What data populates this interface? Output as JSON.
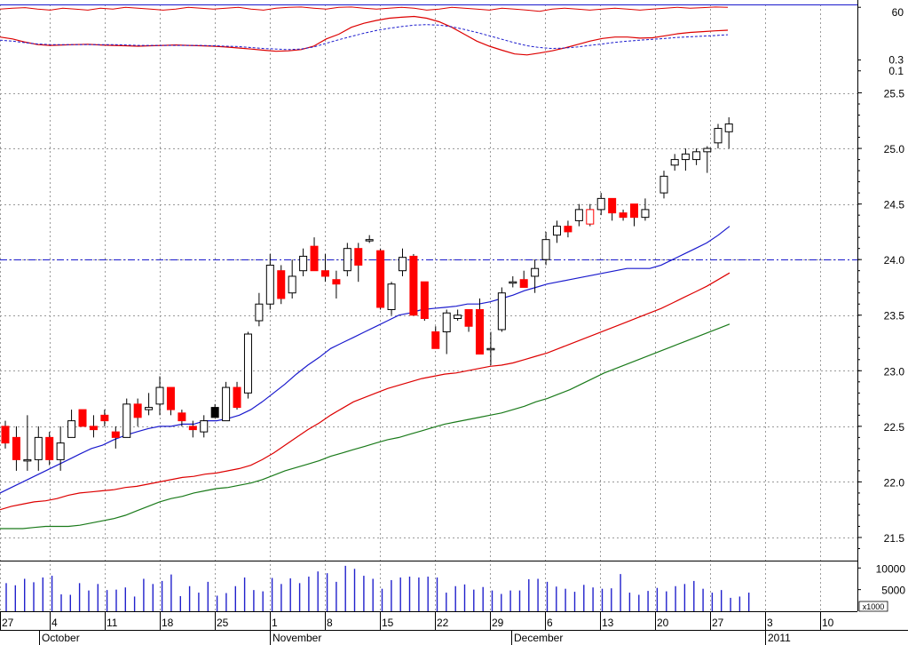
{
  "chart_data": {
    "type": "candlestick",
    "colors": {
      "grid": "#9a9a9a",
      "axis": "#000000",
      "up_fill": "#ffffff",
      "down_fill": "#ff0000",
      "wick": "#000000",
      "ma_short": "#1a1acd",
      "ma_mid": "#dd0000",
      "ma_long": "#1a7a1a",
      "osc_line": "#dd0000",
      "osc_dash": "#1a1acd",
      "volume": "#2020cc",
      "hline": "#1a1acd"
    },
    "oscillator": {
      "tick_labels": [
        "60",
        "0.3",
        "0.1"
      ],
      "tick_values": [
        60,
        0.3,
        0.1
      ],
      "scale": "log",
      "line_values": [
        3.0,
        2.5,
        1.8,
        1.4,
        1.3,
        1.35,
        1.4,
        1.45,
        1.35,
        1.3,
        1.25,
        1.2,
        1.25,
        1.3,
        1.35,
        1.3,
        1.25,
        1.2,
        1.1,
        1.0,
        0.9,
        0.8,
        0.72,
        0.75,
        0.85,
        1.2,
        2.5,
        4.0,
        8.0,
        12.0,
        16.0,
        20.0,
        22.0,
        24.0,
        20.0,
        14.0,
        8.0,
        4.0,
        2.0,
        1.2,
        0.8,
        0.55,
        0.5,
        0.6,
        0.75,
        1.0,
        1.4,
        2.0,
        2.6,
        3.0,
        3.0,
        2.7,
        2.8,
        3.4,
        4.2,
        4.8,
        5.2,
        5.6,
        6.0
      ],
      "dash_values": [
        2.2,
        2.0,
        1.7,
        1.5,
        1.4,
        1.4,
        1.4,
        1.4,
        1.4,
        1.4,
        1.35,
        1.3,
        1.3,
        1.3,
        1.3,
        1.3,
        1.3,
        1.25,
        1.2,
        1.15,
        1.05,
        0.95,
        0.9,
        0.85,
        0.9,
        1.1,
        1.6,
        2.3,
        3.2,
        4.4,
        5.8,
        7.2,
        8.6,
        10.0,
        10.5,
        10.0,
        8.5,
        6.5,
        4.8,
        3.4,
        2.4,
        1.7,
        1.25,
        1.05,
        0.95,
        1.0,
        1.1,
        1.3,
        1.5,
        1.75,
        2.0,
        2.2,
        2.4,
        2.6,
        2.9,
        3.1,
        3.3,
        3.5,
        3.8
      ],
      "top_line_values": [
        50,
        55,
        58,
        50,
        45,
        55,
        50,
        45,
        55,
        50,
        60,
        55,
        50,
        45,
        50,
        60,
        55,
        50,
        55,
        60,
        50,
        45,
        55,
        60,
        62,
        55,
        50,
        60,
        62,
        55,
        50,
        55,
        60,
        55,
        45,
        50,
        60,
        55,
        50,
        45,
        55,
        50,
        45,
        40,
        50,
        55,
        50,
        45,
        50,
        55,
        50,
        45,
        50,
        55,
        60,
        55,
        58,
        62,
        60
      ]
    },
    "price": {
      "y_tick_labels": [
        "25.5",
        "25.0",
        "24.5",
        "24.0",
        "23.5",
        "23.0",
        "22.5",
        "22.0",
        "21.5"
      ],
      "y_tick_values": [
        25.5,
        25.0,
        24.5,
        24.0,
        23.5,
        23.0,
        22.5,
        22.0,
        21.5
      ],
      "ylim": [
        21.3,
        25.6
      ],
      "reference_line": 24.0,
      "candles": [
        {
          "o": 22.5,
          "h": 22.55,
          "l": 22.3,
          "c": 22.35
        },
        {
          "o": 22.4,
          "h": 22.5,
          "l": 22.1,
          "c": 22.2
        },
        {
          "o": 22.2,
          "h": 22.6,
          "l": 22.1,
          "c": 22.2
        },
        {
          "o": 22.2,
          "h": 22.5,
          "l": 22.1,
          "c": 22.4
        },
        {
          "o": 22.4,
          "h": 22.45,
          "l": 22.15,
          "c": 22.2
        },
        {
          "o": 22.2,
          "h": 22.5,
          "l": 22.1,
          "c": 22.35
        },
        {
          "o": 22.4,
          "h": 22.65,
          "l": 22.4,
          "c": 22.55
        },
        {
          "o": 22.65,
          "h": 22.65,
          "l": 22.5,
          "c": 22.5
        },
        {
          "o": 22.5,
          "h": 22.6,
          "l": 22.4,
          "c": 22.47
        },
        {
          "o": 22.6,
          "h": 22.65,
          "l": 22.5,
          "c": 22.55
        },
        {
          "o": 22.45,
          "h": 22.5,
          "l": 22.3,
          "c": 22.4
        },
        {
          "o": 22.4,
          "h": 22.75,
          "l": 22.4,
          "c": 22.7
        },
        {
          "o": 22.7,
          "h": 22.75,
          "l": 22.5,
          "c": 22.58
        },
        {
          "o": 22.65,
          "h": 22.8,
          "l": 22.6,
          "c": 22.67
        },
        {
          "o": 22.7,
          "h": 22.95,
          "l": 22.6,
          "c": 22.85
        },
        {
          "o": 22.85,
          "h": 22.85,
          "l": 22.6,
          "c": 22.65
        },
        {
          "o": 22.62,
          "h": 22.65,
          "l": 22.5,
          "c": 22.55
        },
        {
          "o": 22.5,
          "h": 22.55,
          "l": 22.4,
          "c": 22.47
        },
        {
          "o": 22.45,
          "h": 22.6,
          "l": 22.4,
          "c": 22.55
        },
        {
          "o": 22.58,
          "h": 22.7,
          "l": 22.58,
          "c": 22.67,
          "fill": "#000000"
        },
        {
          "o": 22.55,
          "h": 22.9,
          "l": 22.55,
          "c": 22.85
        },
        {
          "o": 22.85,
          "h": 22.9,
          "l": 22.65,
          "c": 22.67
        },
        {
          "o": 22.8,
          "h": 23.35,
          "l": 22.75,
          "c": 23.33
        },
        {
          "o": 23.45,
          "h": 23.7,
          "l": 23.4,
          "c": 23.6
        },
        {
          "o": 23.6,
          "h": 24.05,
          "l": 23.55,
          "c": 23.95
        },
        {
          "o": 23.9,
          "h": 23.95,
          "l": 23.6,
          "c": 23.65
        },
        {
          "o": 23.7,
          "h": 24.0,
          "l": 23.65,
          "c": 23.85
        },
        {
          "o": 23.9,
          "h": 24.1,
          "l": 23.85,
          "c": 24.03
        },
        {
          "o": 24.12,
          "h": 24.2,
          "l": 23.9,
          "c": 23.9
        },
        {
          "o": 23.9,
          "h": 24.05,
          "l": 23.8,
          "c": 23.85
        },
        {
          "o": 23.82,
          "h": 23.9,
          "l": 23.65,
          "c": 23.78
        },
        {
          "o": 23.9,
          "h": 24.15,
          "l": 23.85,
          "c": 24.1
        },
        {
          "o": 24.1,
          "h": 24.15,
          "l": 23.8,
          "c": 23.95
        },
        {
          "o": 24.18,
          "h": 24.22,
          "l": 24.15,
          "c": 24.18
        },
        {
          "o": 24.08,
          "h": 24.1,
          "l": 23.55,
          "c": 23.57
        },
        {
          "o": 23.55,
          "h": 23.8,
          "l": 23.5,
          "c": 23.78
        },
        {
          "o": 23.9,
          "h": 24.1,
          "l": 23.85,
          "c": 24.02
        },
        {
          "o": 24.03,
          "h": 24.05,
          "l": 23.5,
          "c": 23.5
        },
        {
          "o": 23.8,
          "h": 23.8,
          "l": 23.45,
          "c": 23.47
        },
        {
          "o": 23.35,
          "h": 23.4,
          "l": 23.2,
          "c": 23.2
        },
        {
          "o": 23.35,
          "h": 23.55,
          "l": 23.15,
          "c": 23.52
        },
        {
          "o": 23.47,
          "h": 23.55,
          "l": 23.45,
          "c": 23.5
        },
        {
          "o": 23.55,
          "h": 23.55,
          "l": 23.35,
          "c": 23.4
        },
        {
          "o": 23.55,
          "h": 23.65,
          "l": 23.15,
          "c": 23.15
        },
        {
          "o": 23.2,
          "h": 23.35,
          "l": 23.05,
          "c": 23.2
        },
        {
          "o": 23.37,
          "h": 23.75,
          "l": 23.35,
          "c": 23.7
        },
        {
          "o": 23.8,
          "h": 23.85,
          "l": 23.75,
          "c": 23.8
        },
        {
          "o": 23.82,
          "h": 23.9,
          "l": 23.75,
          "c": 23.75
        },
        {
          "o": 23.85,
          "h": 24.0,
          "l": 23.7,
          "c": 23.92
        },
        {
          "o": 24.0,
          "h": 24.25,
          "l": 23.95,
          "c": 24.18
        },
        {
          "o": 24.22,
          "h": 24.35,
          "l": 24.15,
          "c": 24.3
        },
        {
          "o": 24.3,
          "h": 24.35,
          "l": 24.2,
          "c": 24.25
        },
        {
          "o": 24.35,
          "h": 24.5,
          "l": 24.3,
          "c": 24.45
        },
        {
          "o": 24.32,
          "h": 24.5,
          "l": 24.3,
          "c": 24.45,
          "fill": "#ffffff",
          "stroke": "#ff0000"
        },
        {
          "o": 24.45,
          "h": 24.6,
          "l": 24.4,
          "c": 24.55
        },
        {
          "o": 24.55,
          "h": 24.55,
          "l": 24.35,
          "c": 24.42
        },
        {
          "o": 24.42,
          "h": 24.45,
          "l": 24.35,
          "c": 24.38
        },
        {
          "o": 24.5,
          "h": 24.5,
          "l": 24.3,
          "c": 24.38
        },
        {
          "o": 24.38,
          "h": 24.55,
          "l": 24.35,
          "c": 24.45
        }
      ],
      "late_candles": [
        {
          "o": 24.6,
          "h": 24.8,
          "l": 24.55,
          "c": 24.75
        },
        {
          "o": 24.85,
          "h": 24.95,
          "l": 24.8,
          "c": 24.9
        },
        {
          "o": 24.9,
          "h": 25.0,
          "l": 24.8,
          "c": 24.95
        },
        {
          "o": 24.9,
          "h": 25.0,
          "l": 24.85,
          "c": 24.97
        },
        {
          "o": 24.97,
          "h": 25.02,
          "l": 24.78,
          "c": 25.0
        },
        {
          "o": 25.05,
          "h": 25.22,
          "l": 25.0,
          "c": 25.18
        },
        {
          "o": 25.15,
          "h": 25.28,
          "l": 25.0,
          "c": 25.22
        }
      ],
      "ma_short": [
        21.9,
        21.95,
        22.0,
        22.05,
        22.1,
        22.15,
        22.2,
        22.25,
        22.3,
        22.33,
        22.38,
        22.42,
        22.45,
        22.48,
        22.5,
        22.5,
        22.52,
        22.52,
        22.55,
        22.55,
        22.57,
        22.6,
        22.65,
        22.72,
        22.8,
        22.88,
        22.97,
        23.05,
        23.12,
        23.2,
        23.25,
        23.3,
        23.35,
        23.4,
        23.45,
        23.5,
        23.52,
        23.55,
        23.56,
        23.57,
        23.58,
        23.6,
        23.6,
        23.62,
        23.65,
        23.68,
        23.72,
        23.75,
        23.78,
        23.8,
        23.82,
        23.84,
        23.86,
        23.88,
        23.9,
        23.92,
        23.92,
        23.92,
        23.95,
        24.0,
        24.05,
        24.1,
        24.15,
        24.22,
        24.3
      ],
      "ma_mid": [
        21.75,
        21.78,
        21.8,
        21.82,
        21.83,
        21.85,
        21.88,
        21.9,
        21.91,
        21.92,
        21.93,
        21.95,
        21.96,
        21.98,
        22.0,
        22.02,
        22.04,
        22.05,
        22.07,
        22.08,
        22.1,
        22.12,
        22.15,
        22.2,
        22.26,
        22.33,
        22.4,
        22.47,
        22.53,
        22.6,
        22.66,
        22.72,
        22.76,
        22.8,
        22.84,
        22.87,
        22.9,
        22.93,
        22.95,
        22.97,
        22.98,
        23.0,
        23.02,
        23.04,
        23.05,
        23.07,
        23.1,
        23.13,
        23.16,
        23.2,
        23.24,
        23.28,
        23.32,
        23.36,
        23.4,
        23.44,
        23.48,
        23.52,
        23.56,
        23.61,
        23.66,
        23.71,
        23.76,
        23.82,
        23.88
      ],
      "ma_long": [
        21.58,
        21.58,
        21.58,
        21.59,
        21.6,
        21.6,
        21.6,
        21.61,
        21.63,
        21.65,
        21.67,
        21.7,
        21.74,
        21.78,
        21.82,
        21.85,
        21.87,
        21.9,
        21.92,
        21.94,
        21.95,
        21.97,
        21.99,
        22.02,
        22.06,
        22.1,
        22.13,
        22.16,
        22.19,
        22.23,
        22.26,
        22.29,
        22.32,
        22.35,
        22.38,
        22.4,
        22.43,
        22.46,
        22.49,
        22.52,
        22.54,
        22.56,
        22.58,
        22.6,
        22.62,
        22.65,
        22.68,
        22.72,
        22.75,
        22.79,
        22.83,
        22.88,
        22.93,
        22.98,
        23.02,
        23.06,
        23.1,
        23.14,
        23.18,
        23.22,
        23.26,
        23.3,
        23.34,
        23.38,
        23.42
      ]
    },
    "volume": {
      "tick_labels": [
        "10000",
        "5000"
      ],
      "tick_values": [
        10000,
        5000
      ],
      "unit_label": "x1000",
      "values": [
        6500,
        6000,
        7500,
        6700,
        7800,
        8200,
        3900,
        3800,
        6500,
        4800,
        6300,
        4900,
        5000,
        5500,
        3400,
        7500,
        6300,
        7000,
        8500,
        3500,
        5800,
        4300,
        6800,
        3600,
        4200,
        5800,
        7800,
        4900,
        4600,
        7700,
        6300,
        7600,
        6500,
        8000,
        9200,
        8800,
        6800,
        10500,
        9800,
        8200,
        7500,
        5200,
        7200,
        7800,
        8000,
        7800,
        8000,
        7800,
        4300,
        5800,
        6200,
        5000,
        5600,
        4800,
        4000,
        4800,
        4800,
        7400,
        7500,
        6800,
        5700,
        5200,
        4500,
        6100,
        5500,
        5200,
        5300,
        8600,
        4300,
        3800,
        4700,
        5400,
        4600,
        5800,
        6300,
        7000,
        5200,
        4300,
        4900,
        3100,
        3400,
        4300
      ]
    },
    "x_axis": {
      "day_labels": [
        "27",
        "4",
        "11",
        "18",
        "25",
        "1",
        "8",
        "15",
        "22",
        "29",
        "6",
        "13",
        "20",
        "27",
        "3",
        "10"
      ],
      "month_labels": [
        "October",
        "November",
        "December",
        "2011"
      ]
    }
  }
}
